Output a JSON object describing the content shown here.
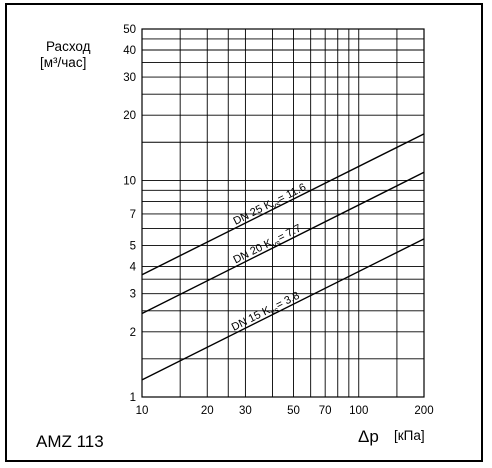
{
  "chart_data": {
    "type": "line",
    "scale": "log-log",
    "ylabel_line1": "Расход",
    "ylabel_line2": "[м³/час]",
    "xlabel_symbol": "Δp",
    "xlabel_unit": "[кПа]",
    "xlim": [
      10,
      200
    ],
    "ylim": [
      1,
      50
    ],
    "grid": true,
    "x_ticks": [
      10,
      20,
      30,
      50,
      70,
      100,
      200
    ],
    "y_ticks": [
      1,
      2,
      3,
      4,
      5,
      7,
      10,
      20,
      30,
      40,
      50
    ],
    "x_gridlines": [
      10,
      15,
      20,
      25,
      30,
      40,
      50,
      60,
      70,
      80,
      90,
      100,
      150,
      200
    ],
    "y_gridlines": [
      1,
      1.5,
      2,
      2.5,
      3,
      3.5,
      4,
      5,
      6,
      7,
      8,
      9,
      10,
      15,
      20,
      25,
      30,
      35,
      40,
      45,
      50
    ],
    "series": [
      {
        "name": "DN 25 Kvs= 11.6",
        "dn": "DN 25",
        "kvs": "11.6",
        "x": [
          10,
          200
        ],
        "y": [
          3.67,
          16.4
        ]
      },
      {
        "name": "DN 20 Kvs= 7.7",
        "dn": "DN 20",
        "kvs": "7.7",
        "x": [
          10,
          200
        ],
        "y": [
          2.43,
          10.9
        ]
      },
      {
        "name": "DN 15 Kvs= 3.8",
        "dn": "DN 15",
        "kvs": "3.8",
        "x": [
          10,
          200
        ],
        "y": [
          1.2,
          5.37
        ]
      }
    ]
  },
  "model_label": "AMZ 113"
}
